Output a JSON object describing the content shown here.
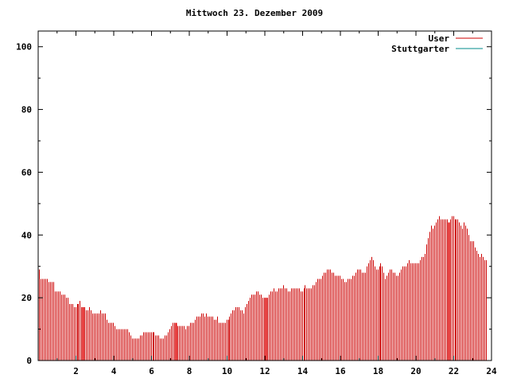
{
  "chart_data": {
    "type": "bar",
    "title": "Mittwoch 23. Dezember 2009",
    "xlabel": "",
    "ylabel": "",
    "xlim": [
      0,
      24
    ],
    "ylim": [
      0,
      105
    ],
    "xticks": [
      2,
      4,
      6,
      8,
      10,
      12,
      14,
      16,
      18,
      20,
      22,
      24
    ],
    "yticks": [
      0,
      20,
      40,
      60,
      80,
      100
    ],
    "grid": false,
    "legend_position": "top-right",
    "series": [
      {
        "name": "User",
        "color": "#cc0000",
        "interval_minutes": 5,
        "values": [
          29,
          26,
          26,
          26,
          26,
          26,
          25,
          25,
          25,
          25,
          22,
          22,
          22,
          22,
          21,
          21,
          21,
          20,
          20,
          18,
          18,
          18,
          17,
          17,
          18,
          18,
          19,
          17,
          17,
          17,
          16,
          16,
          17,
          16,
          15,
          15,
          15,
          15,
          15,
          16,
          15,
          15,
          15,
          13,
          12,
          12,
          12,
          12,
          11,
          10,
          10,
          10,
          10,
          10,
          10,
          10,
          10,
          9,
          8,
          7,
          7,
          7,
          7,
          7,
          8,
          8,
          9,
          9,
          9,
          9,
          9,
          9,
          9,
          9,
          8,
          8,
          8,
          7,
          7,
          7,
          8,
          8,
          9,
          10,
          11,
          12,
          12,
          12,
          11,
          11,
          11,
          11,
          11,
          10,
          11,
          11,
          12,
          12,
          12,
          13,
          14,
          14,
          14,
          15,
          15,
          14,
          15,
          14,
          14,
          14,
          14,
          13,
          13,
          14,
          12,
          12,
          12,
          12,
          12,
          13,
          13,
          14,
          15,
          16,
          16,
          17,
          17,
          17,
          16,
          16,
          15,
          17,
          18,
          19,
          20,
          21,
          21,
          21,
          22,
          22,
          21,
          21,
          20,
          20,
          20,
          20,
          21,
          22,
          22,
          23,
          22,
          22,
          23,
          23,
          23,
          24,
          23,
          23,
          22,
          22,
          23,
          23,
          23,
          23,
          23,
          23,
          22,
          22,
          23,
          24,
          23,
          23,
          23,
          23,
          24,
          24,
          25,
          26,
          26,
          26,
          27,
          28,
          28,
          29,
          29,
          29,
          28,
          28,
          27,
          27,
          27,
          27,
          26,
          26,
          25,
          25,
          26,
          26,
          26,
          27,
          27,
          28,
          29,
          29,
          29,
          28,
          28,
          28,
          30,
          31,
          32,
          33,
          32,
          30,
          29,
          29,
          30,
          31,
          30,
          28,
          26,
          27,
          28,
          29,
          29,
          28,
          28,
          27,
          27,
          28,
          29,
          30,
          30,
          30,
          31,
          32,
          31,
          31,
          31,
          31,
          31,
          31,
          32,
          33,
          33,
          34,
          37,
          39,
          41,
          43,
          42,
          43,
          44,
          45,
          46,
          45,
          45,
          45,
          45,
          45,
          44,
          45,
          46,
          46,
          45,
          45,
          45,
          44,
          43,
          42,
          44,
          43,
          42,
          40,
          38,
          38,
          38,
          36,
          35,
          34,
          33,
          34,
          33,
          32,
          32
        ]
      },
      {
        "name": "Stuttgarter",
        "color": "#008b8b",
        "values": []
      }
    ],
    "highlight_bars_hours": [
      2.333,
      7.25,
      12.0,
      21.667
    ]
  }
}
